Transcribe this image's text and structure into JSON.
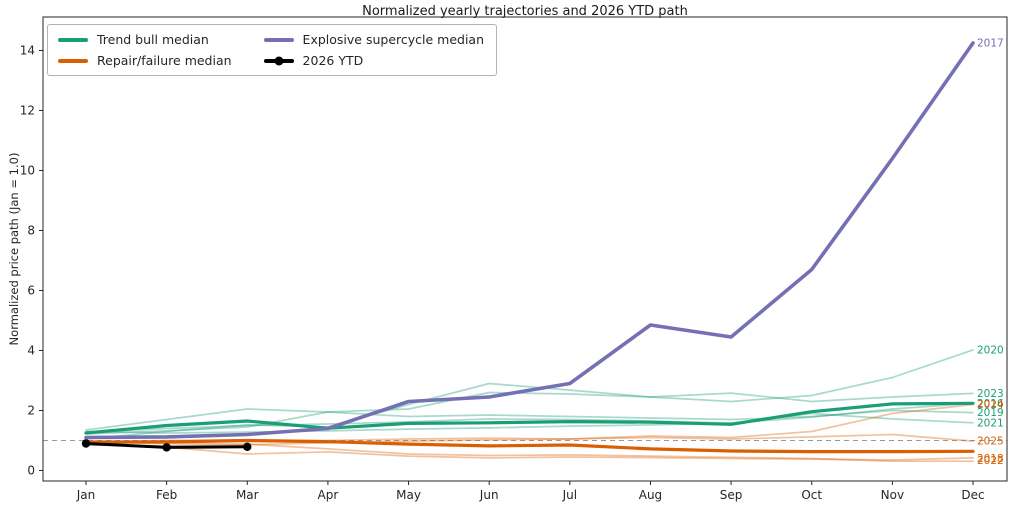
{
  "title": "Normalized yearly trajectories and 2026 YTD path",
  "colors": {
    "trend": "#1b9e77",
    "repair": "#d95f02",
    "supercycle": "#7570b3",
    "ytd": "#000000",
    "ref_line": "#999999",
    "axis": "#262626"
  },
  "legend": {
    "items": [
      {
        "label": "Trend bull median",
        "group": "trend",
        "marker": "line"
      },
      {
        "label": "Repair/failure median",
        "group": "repair",
        "marker": "line"
      },
      {
        "label": "Explosive supercycle median",
        "group": "supercycle",
        "marker": "line"
      },
      {
        "label": "2026 YTD",
        "group": "ytd",
        "marker": "line-dot"
      }
    ]
  },
  "chart_data": {
    "type": "line",
    "title": "Normalized yearly trajectories and 2026 YTD path",
    "xlabel": "",
    "ylabel": "Normalized price path (Jan = 1.0)",
    "x_categories": [
      "Jan",
      "Feb",
      "Mar",
      "Apr",
      "May",
      "Jun",
      "Jul",
      "Aug",
      "Sep",
      "Oct",
      "Nov",
      "Dec"
    ],
    "yticks": [
      0,
      2,
      4,
      6,
      8,
      10,
      12,
      14
    ],
    "ylim": [
      -0.35,
      15.1
    ],
    "reference_line_y": 1.0,
    "grid": false,
    "legend_position": "upper-left",
    "year_series": [
      {
        "year": "2016",
        "group": "trend",
        "values": [
          1.3,
          1.25,
          1.28,
          1.32,
          1.38,
          1.42,
          1.48,
          1.52,
          1.58,
          1.78,
          2.05,
          2.24
        ]
      },
      {
        "year": "2017",
        "group": "supercycle",
        "values": [
          1.1,
          1.12,
          1.2,
          1.4,
          2.3,
          2.45,
          2.9,
          4.85,
          4.45,
          6.7,
          10.4,
          14.25
        ]
      },
      {
        "year": "2018",
        "group": "repair",
        "values": [
          0.9,
          0.78,
          0.55,
          0.62,
          0.48,
          0.42,
          0.45,
          0.43,
          0.4,
          0.38,
          0.35,
          0.42
        ]
      },
      {
        "year": "2019",
        "group": "trend",
        "values": [
          1.35,
          1.7,
          2.05,
          1.95,
          1.8,
          1.85,
          1.8,
          1.75,
          1.7,
          1.8,
          2.0,
          1.93
        ]
      },
      {
        "year": "2020",
        "group": "trend",
        "values": [
          1.05,
          1.3,
          1.52,
          1.45,
          2.2,
          2.9,
          2.68,
          2.45,
          2.3,
          2.5,
          3.1,
          4.02
        ]
      },
      {
        "year": "2021",
        "group": "trend",
        "values": [
          1.28,
          1.4,
          1.5,
          1.55,
          1.62,
          1.72,
          1.7,
          1.65,
          1.58,
          1.9,
          1.72,
          1.59
        ]
      },
      {
        "year": "2022",
        "group": "repair",
        "values": [
          0.95,
          0.9,
          0.88,
          0.72,
          0.55,
          0.5,
          0.52,
          0.48,
          0.44,
          0.4,
          0.31,
          0.31
        ]
      },
      {
        "year": "2023",
        "group": "trend",
        "values": [
          1.22,
          1.32,
          1.45,
          1.95,
          2.05,
          2.6,
          2.55,
          2.45,
          2.58,
          2.3,
          2.45,
          2.57
        ]
      },
      {
        "year": "2024",
        "group": "repair",
        "values": [
          0.95,
          1.0,
          1.02,
          1.0,
          1.05,
          1.08,
          1.05,
          1.15,
          1.1,
          1.3,
          1.9,
          2.2
        ]
      },
      {
        "year": "2025",
        "group": "repair",
        "values": [
          0.85,
          0.82,
          0.86,
          0.92,
          0.98,
          1.02,
          1.05,
          1.1,
          1.05,
          1.12,
          1.2,
          0.98
        ]
      }
    ],
    "median_series": [
      {
        "name": "Trend bull median",
        "group": "trend",
        "values": [
          1.25,
          1.5,
          1.65,
          1.41,
          1.57,
          1.59,
          1.63,
          1.61,
          1.54,
          1.96,
          2.22,
          2.24
        ]
      },
      {
        "name": "Repair/failure median",
        "group": "repair",
        "values": [
          0.95,
          0.95,
          1.0,
          0.96,
          0.88,
          0.82,
          0.85,
          0.72,
          0.65,
          0.63,
          0.63,
          0.64
        ]
      },
      {
        "name": "Explosive supercycle median",
        "group": "supercycle",
        "values": [
          1.1,
          1.12,
          1.2,
          1.4,
          2.3,
          2.45,
          2.9,
          4.85,
          4.45,
          6.7,
          10.4,
          14.25
        ]
      }
    ],
    "ytd_series": {
      "name": "2026 YTD",
      "x_categories": [
        "Jan",
        "Feb",
        "Mar"
      ],
      "values": [
        0.9,
        0.77,
        0.79
      ]
    },
    "end_labels": [
      {
        "text": "2017",
        "group": "supercycle",
        "y": 14.25
      },
      {
        "text": "2020",
        "group": "trend",
        "y": 4.02
      },
      {
        "text": "2023",
        "group": "trend",
        "y": 2.57
      },
      {
        "text": "2016",
        "group": "trend",
        "y": 2.24
      },
      {
        "text": "2024",
        "group": "repair",
        "y": 2.2
      },
      {
        "text": "2019",
        "group": "trend",
        "y": 1.93
      },
      {
        "text": "2021",
        "group": "trend",
        "y": 1.59
      },
      {
        "text": "2025",
        "group": "repair",
        "y": 0.98
      },
      {
        "text": "2018",
        "group": "repair",
        "y": 0.4
      },
      {
        "text": "2022",
        "group": "repair",
        "y": 0.33
      }
    ]
  }
}
